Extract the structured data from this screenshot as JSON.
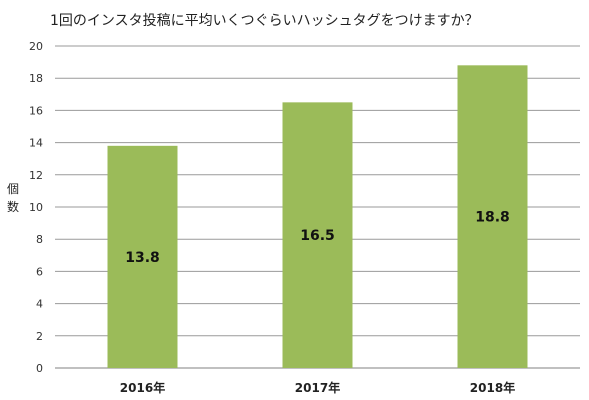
{
  "chart_data": {
    "type": "bar",
    "title": "1回のインスタ投稿に平均いくつぐらいハッシュタグをつけますか？",
    "ylabel": "個数",
    "xlabel": "",
    "categories": [
      "2016年",
      "2017年",
      "2018年"
    ],
    "values": [
      13.8,
      16.5,
      18.8
    ],
    "data_labels": [
      "13.8",
      "16.5",
      "18.8"
    ],
    "ylim": [
      0,
      20
    ],
    "yticks": [
      "0",
      "2",
      "4",
      "6",
      "8",
      "10",
      "12",
      "14",
      "16",
      "18",
      "20"
    ],
    "grid": true,
    "legend": "none"
  },
  "colors": {
    "bar": "#9bbb59",
    "grid": "#9a9a9a",
    "axis": "#808080"
  }
}
